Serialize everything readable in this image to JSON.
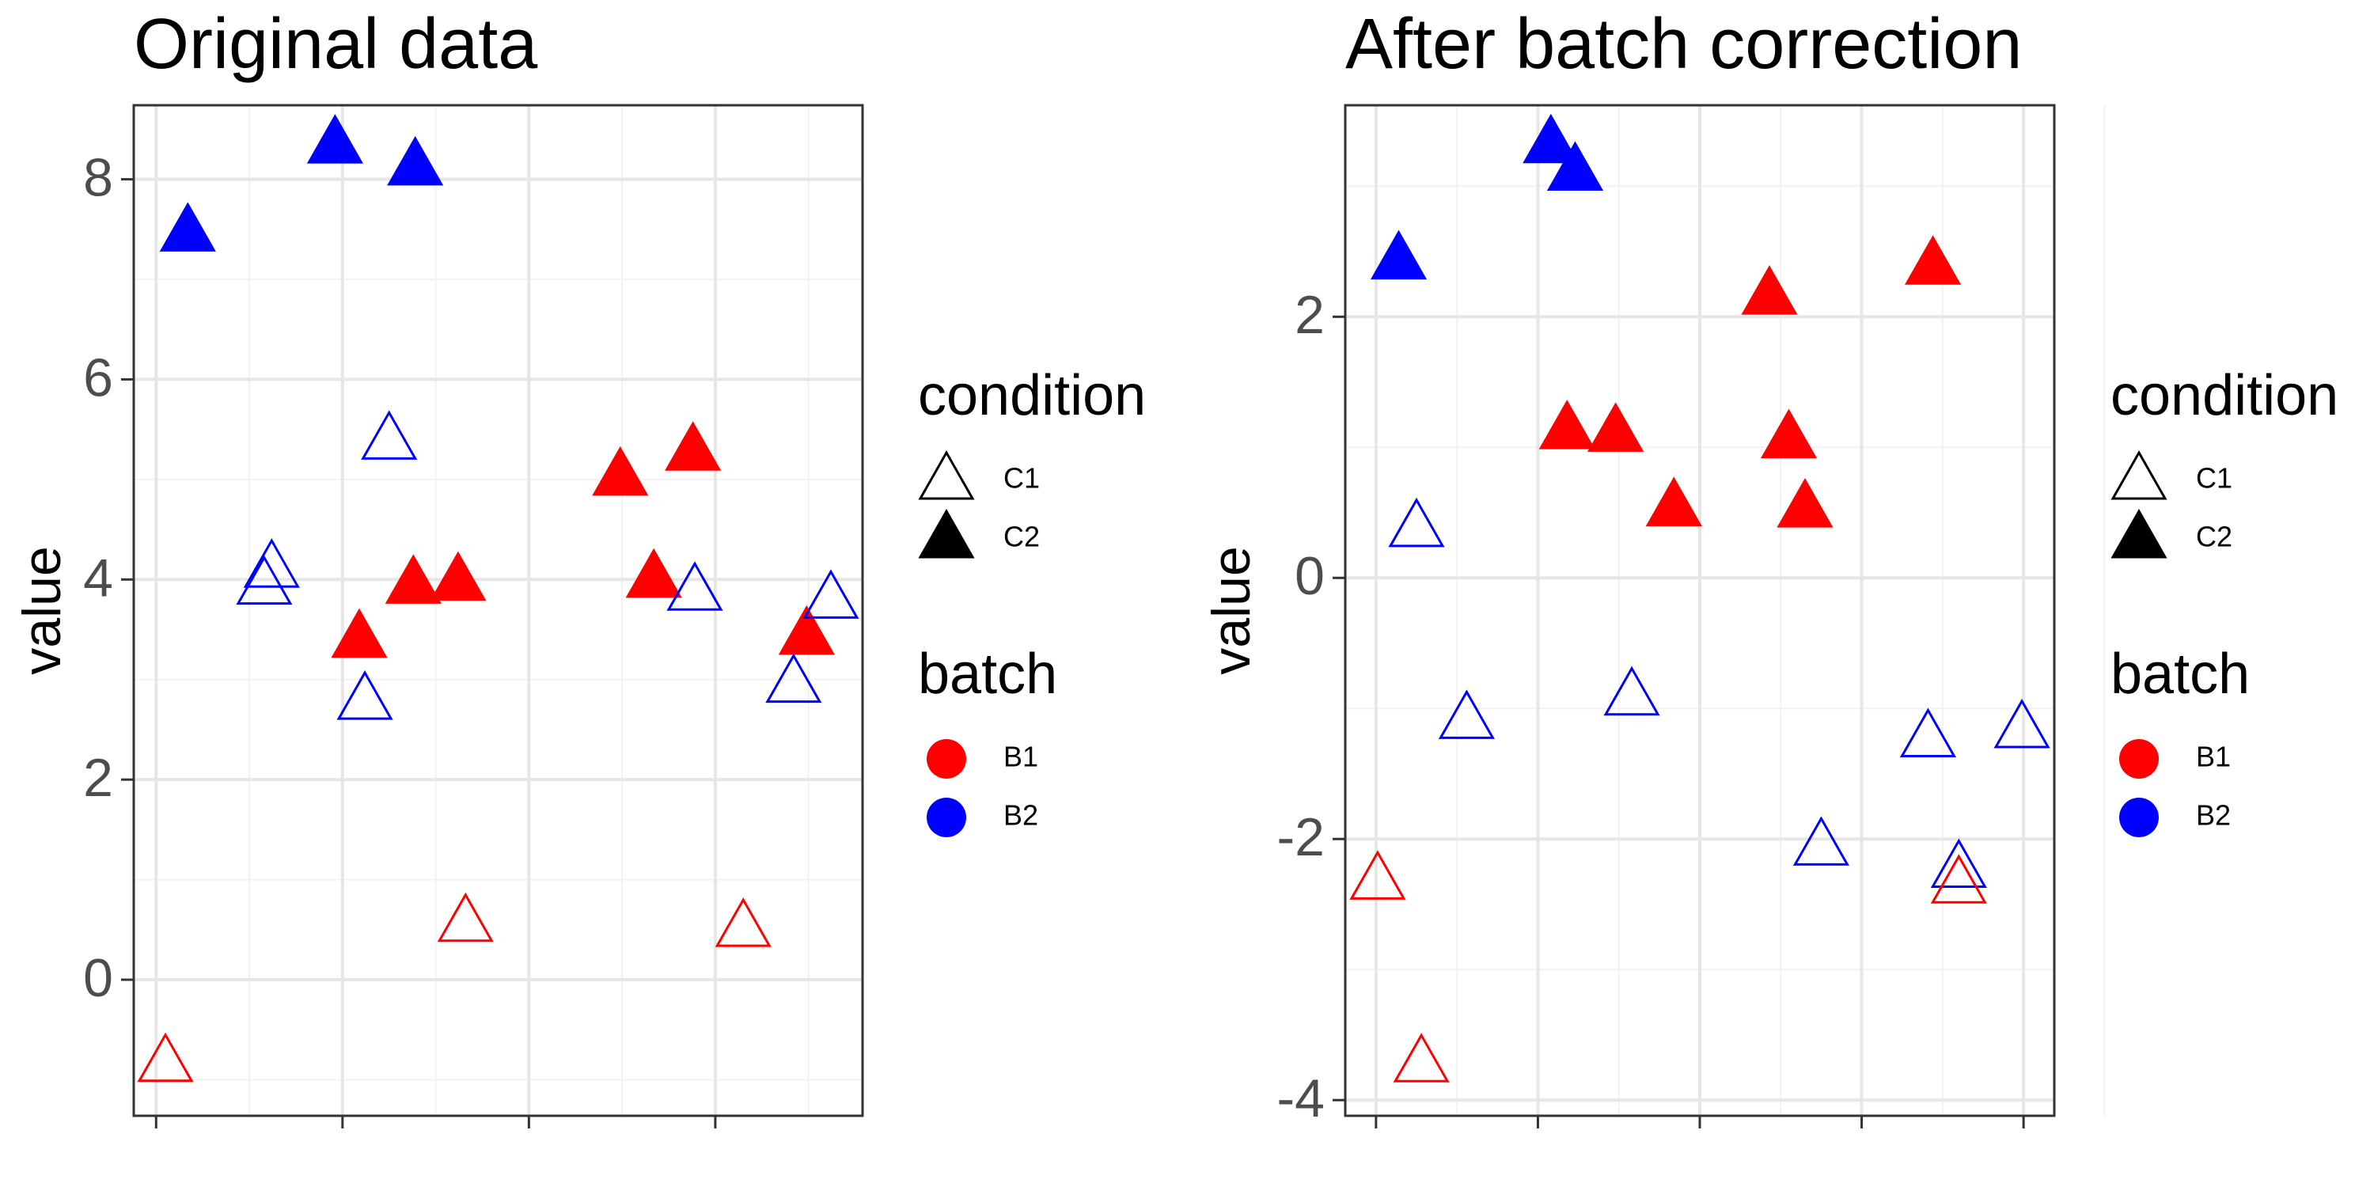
{
  "chart_data": [
    {
      "type": "scatter",
      "title": "Original data",
      "ylabel": "value",
      "xlim": [
        0.88,
        4.79
      ],
      "xticks": [
        1,
        2,
        3,
        4
      ],
      "x_tick_labels": false,
      "ylim": [
        -1.36,
        8.74
      ],
      "yticks": [
        0,
        2,
        4,
        6,
        8
      ],
      "grid": true,
      "legend": [
        {
          "title": "condition",
          "labels": [
            "C1",
            "C2"
          ],
          "filled": [
            false,
            true
          ],
          "shape": "triangle"
        },
        {
          "title": "batch",
          "labels": [
            "B1",
            "B2"
          ],
          "colors": [
            "#ff0000",
            "#0000ff"
          ],
          "shape": "circle"
        }
      ],
      "series": [
        {
          "condition": 1,
          "batch": 0,
          "color": "#ff0000",
          "filled": true,
          "x": [
            2.09,
            2.38,
            2.62,
            3.49,
            3.67,
            3.88,
            4.49
          ],
          "y": [
            3.38,
            3.92,
            3.95,
            5.0,
            3.98,
            5.25,
            3.41
          ]
        },
        {
          "condition": 1,
          "batch": 1,
          "color": "#0000ff",
          "filled": true,
          "x": [
            1.17,
            1.96,
            2.39
          ],
          "y": [
            7.44,
            8.32,
            8.1
          ]
        },
        {
          "condition": 0,
          "batch": 1,
          "color": "#0000ff",
          "filled": false,
          "x": [
            1.58,
            1.62,
            2.25,
            2.12,
            3.89,
            4.62,
            4.42
          ],
          "y": [
            3.91,
            4.08,
            5.36,
            2.76,
            3.85,
            3.77,
            2.93
          ]
        },
        {
          "condition": 0,
          "batch": 0,
          "color": "#ff0000",
          "filled": false,
          "x": [
            1.05,
            2.66,
            4.15
          ],
          "y": [
            -0.86,
            0.54,
            0.49
          ]
        }
      ]
    },
    {
      "type": "scatter",
      "title": "After batch correction",
      "ylabel": "value",
      "xlim": [
        0.81,
        5.19
      ],
      "xticks": [
        1,
        2,
        3,
        4,
        5
      ],
      "x_tick_labels": false,
      "ylim": [
        -4.12,
        3.62
      ],
      "yticks": [
        -4,
        -2,
        0,
        2
      ],
      "grid": true,
      "legend": [
        {
          "title": "condition",
          "labels": [
            "C1",
            "C2"
          ],
          "filled": [
            false,
            true
          ],
          "shape": "triangle"
        },
        {
          "title": "batch",
          "labels": [
            "B1",
            "B2"
          ],
          "colors": [
            "#ff0000",
            "#0000ff"
          ],
          "shape": "circle"
        }
      ],
      "series": [
        {
          "condition": 1,
          "batch": 1,
          "color": "#0000ff",
          "filled": true,
          "x": [
            1.14,
            2.08,
            2.23
          ],
          "y": [
            2.41,
            3.3,
            3.09
          ]
        },
        {
          "condition": 1,
          "batch": 0,
          "color": "#ff0000",
          "filled": true,
          "x": [
            2.18,
            2.48,
            2.84,
            3.43,
            3.55,
            3.65,
            4.44
          ],
          "y": [
            1.11,
            1.09,
            0.52,
            2.14,
            1.04,
            0.51,
            2.37
          ]
        },
        {
          "condition": 0,
          "batch": 1,
          "color": "#0000ff",
          "filled": false,
          "x": [
            1.25,
            1.56,
            2.58,
            3.75,
            4.41,
            4.6,
            4.99
          ],
          "y": [
            0.36,
            -1.11,
            -0.93,
            -2.08,
            -1.25,
            -2.25,
            -1.18
          ]
        },
        {
          "condition": 0,
          "batch": 0,
          "color": "#ff0000",
          "filled": false,
          "x": [
            1.01,
            1.28,
            4.6
          ],
          "y": [
            -2.34,
            -3.74,
            -2.37
          ]
        }
      ]
    }
  ]
}
